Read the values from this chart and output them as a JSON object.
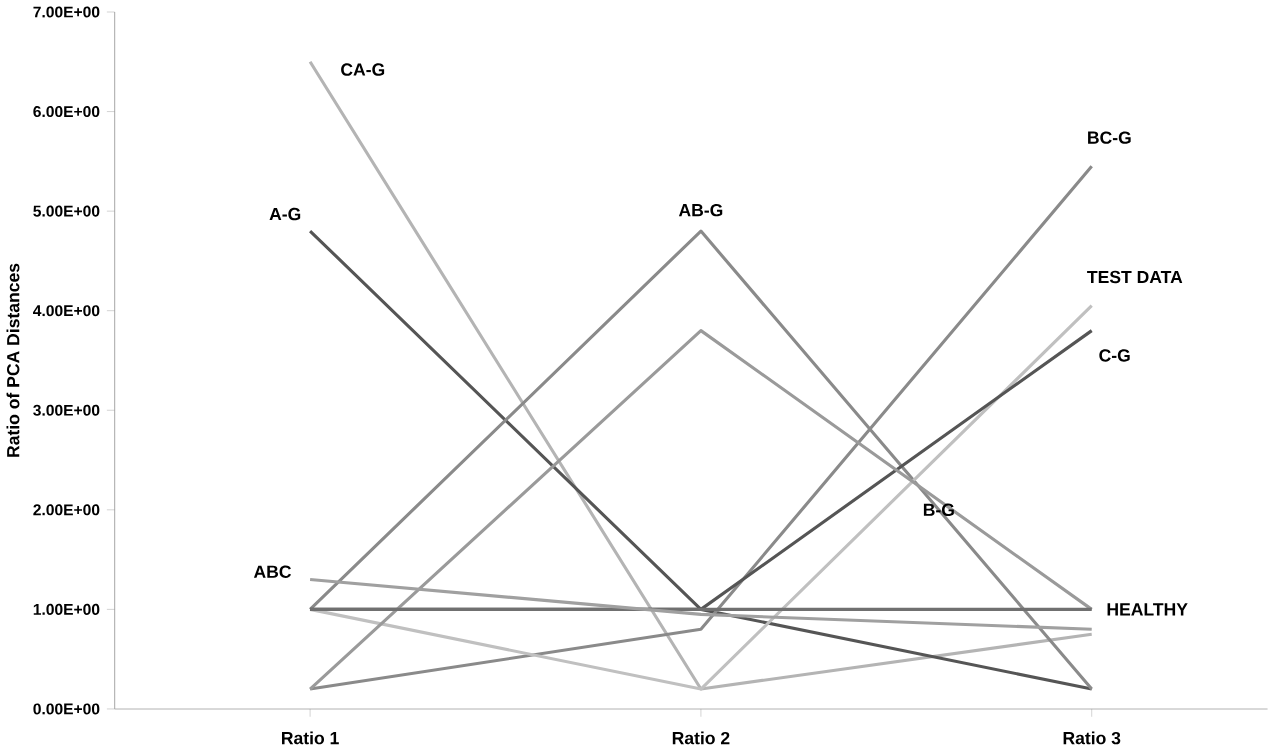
{
  "chart_data": {
    "type": "line",
    "ylabel": "Ratio of PCA Distances",
    "categories": [
      "Ratio 1",
      "Ratio 2",
      "Ratio 3"
    ],
    "series": [
      {
        "name": "CA-G",
        "color": "#b4b4b4",
        "values": [
          6.5,
          0.2,
          0.75
        ]
      },
      {
        "name": "A-G",
        "color": "#555555",
        "values": [
          4.8,
          1.0,
          0.2
        ]
      },
      {
        "name": "AB-G",
        "color": "#8a8a8a",
        "values": [
          1.0,
          4.8,
          0.2
        ]
      },
      {
        "name": "BC-G",
        "color": "#8a8a8a",
        "values": [
          0.2,
          0.8,
          5.45
        ]
      },
      {
        "name": "TEST DATA",
        "color": "#c0c0c0",
        "values": [
          1.0,
          0.2,
          4.05
        ]
      },
      {
        "name": "C-G",
        "color": "#555555",
        "values": [
          1.0,
          1.0,
          3.8
        ]
      },
      {
        "name": "B-G",
        "color": "#9a9a9a",
        "values": [
          0.2,
          3.8,
          1.0
        ]
      },
      {
        "name": "HEALTHY",
        "color": "#707070",
        "values": [
          1.0,
          1.0,
          1.0
        ]
      },
      {
        "name": "ABC",
        "color": "#a0a0a0",
        "values": [
          1.3,
          0.95,
          0.8
        ]
      }
    ],
    "ylim": [
      0,
      7
    ],
    "yticks": [
      {
        "value": 0,
        "label": "0.00E+00"
      },
      {
        "value": 1,
        "label": "1.00E+00"
      },
      {
        "value": 2,
        "label": "2.00E+00"
      },
      {
        "value": 3,
        "label": "3.00E+00"
      },
      {
        "value": 4,
        "label": "4.00E+00"
      },
      {
        "value": 5,
        "label": "5.00E+00"
      },
      {
        "value": 6,
        "label": "6.00E+00"
      },
      {
        "value": 7,
        "label": "7.00E+00"
      }
    ],
    "grid": false,
    "legend": false,
    "marker": "none",
    "line_style": "solid"
  }
}
